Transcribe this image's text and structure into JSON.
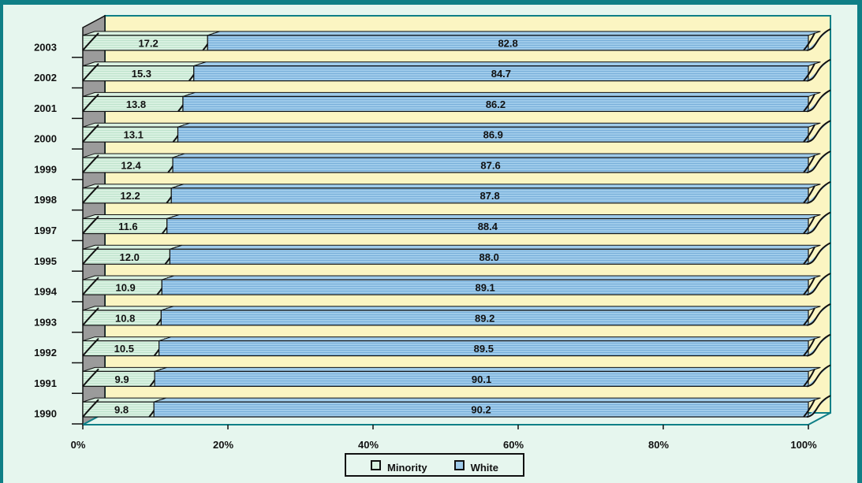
{
  "chart_data": {
    "type": "bar",
    "stacked": "percent",
    "orientation": "horizontal",
    "categories": [
      "2003",
      "2002",
      "2001",
      "2000",
      "1999",
      "1998",
      "1997",
      "1995",
      "1994",
      "1993",
      "1992",
      "1991",
      "1990"
    ],
    "series": [
      {
        "name": "Minority",
        "color": "#d9f1e1",
        "values": [
          17.2,
          15.3,
          13.8,
          13.1,
          12.4,
          12.2,
          11.6,
          12.0,
          10.9,
          10.8,
          10.5,
          9.9,
          9.8
        ],
        "value_labels": [
          "17.2",
          "15.3",
          "13.8",
          "13.1",
          "12.4",
          "12.2",
          "11.6",
          "12.0",
          "10.9",
          "10.8",
          "10.5",
          "9.9",
          "9.8"
        ]
      },
      {
        "name": "White",
        "color": "#9fcbea",
        "values": [
          82.8,
          84.7,
          86.2,
          86.9,
          87.6,
          87.8,
          88.4,
          88.0,
          89.1,
          89.2,
          89.5,
          90.1,
          90.2
        ],
        "value_labels": [
          "82.8",
          "84.7",
          "86.2",
          "86.9",
          "87.6",
          "87.8",
          "88.4",
          "88.0",
          "89.1",
          "89.2",
          "89.5",
          "90.1",
          "90.2"
        ]
      }
    ],
    "xlim": [
      0,
      100
    ],
    "x_ticks": [
      "0%",
      "20%",
      "40%",
      "60%",
      "80%",
      "100%"
    ],
    "xlabel": "",
    "ylabel": "",
    "legend_position": "bottom-center",
    "grid": false,
    "style": "3d",
    "colors": {
      "frame": "#0f7f86",
      "page_background": "#e6f6ee",
      "back_wall": "#fbf5c2",
      "side_wall": "#9b9b9b",
      "outline": "#111111"
    }
  }
}
